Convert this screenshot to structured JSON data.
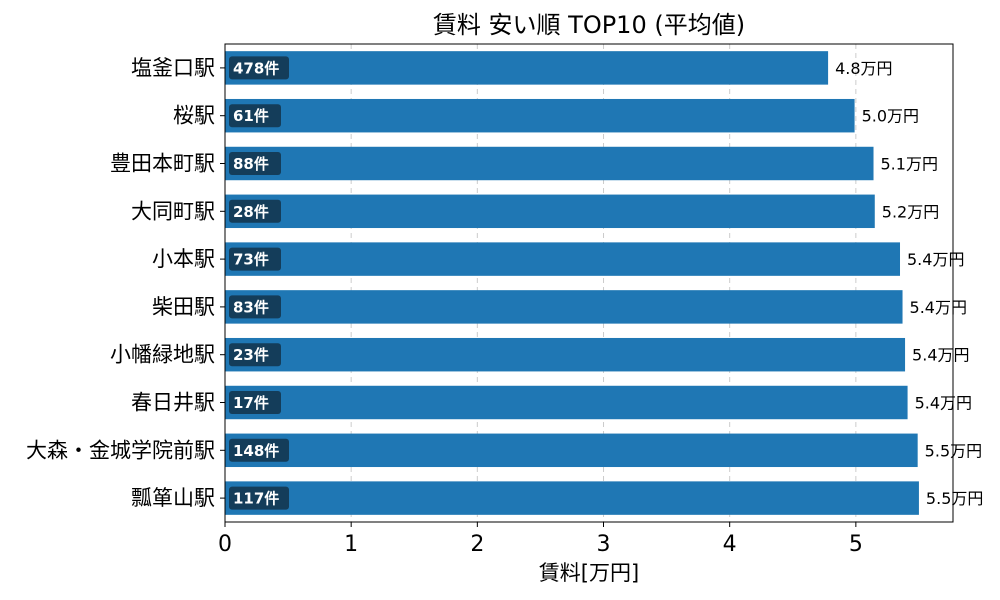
{
  "chart_data": {
    "type": "bar",
    "orientation": "horizontal",
    "title": "賃料 安い順 TOP10 (平均値)",
    "xlabel": "賃料[万円]",
    "ylabel": "",
    "xlim": [
      0,
      5.77
    ],
    "xticks": [
      "0",
      "1",
      "2",
      "3",
      "4",
      "5"
    ],
    "grid": "x-dashed",
    "bar_color": "#1f77b4",
    "count_badge_color": "#143d5a",
    "categories": [
      "塩釜口駅",
      "桜駅",
      "豊田本町駅",
      "大同町駅",
      "小本駅",
      "柴田駅",
      "小幡緑地駅",
      "春日井駅",
      "大森・金城学院前駅",
      "瓢箪山駅"
    ],
    "values": [
      4.78,
      4.99,
      5.14,
      5.15,
      5.35,
      5.37,
      5.39,
      5.41,
      5.49,
      5.5
    ],
    "value_labels": [
      "4.8万円",
      "5.0万円",
      "5.1万円",
      "5.2万円",
      "5.4万円",
      "5.4万円",
      "5.4万円",
      "5.4万円",
      "5.5万円",
      "5.5万円"
    ],
    "counts": [
      "478件",
      "61件",
      "88件",
      "28件",
      "73件",
      "83件",
      "23件",
      "17件",
      "148件",
      "117件"
    ]
  }
}
